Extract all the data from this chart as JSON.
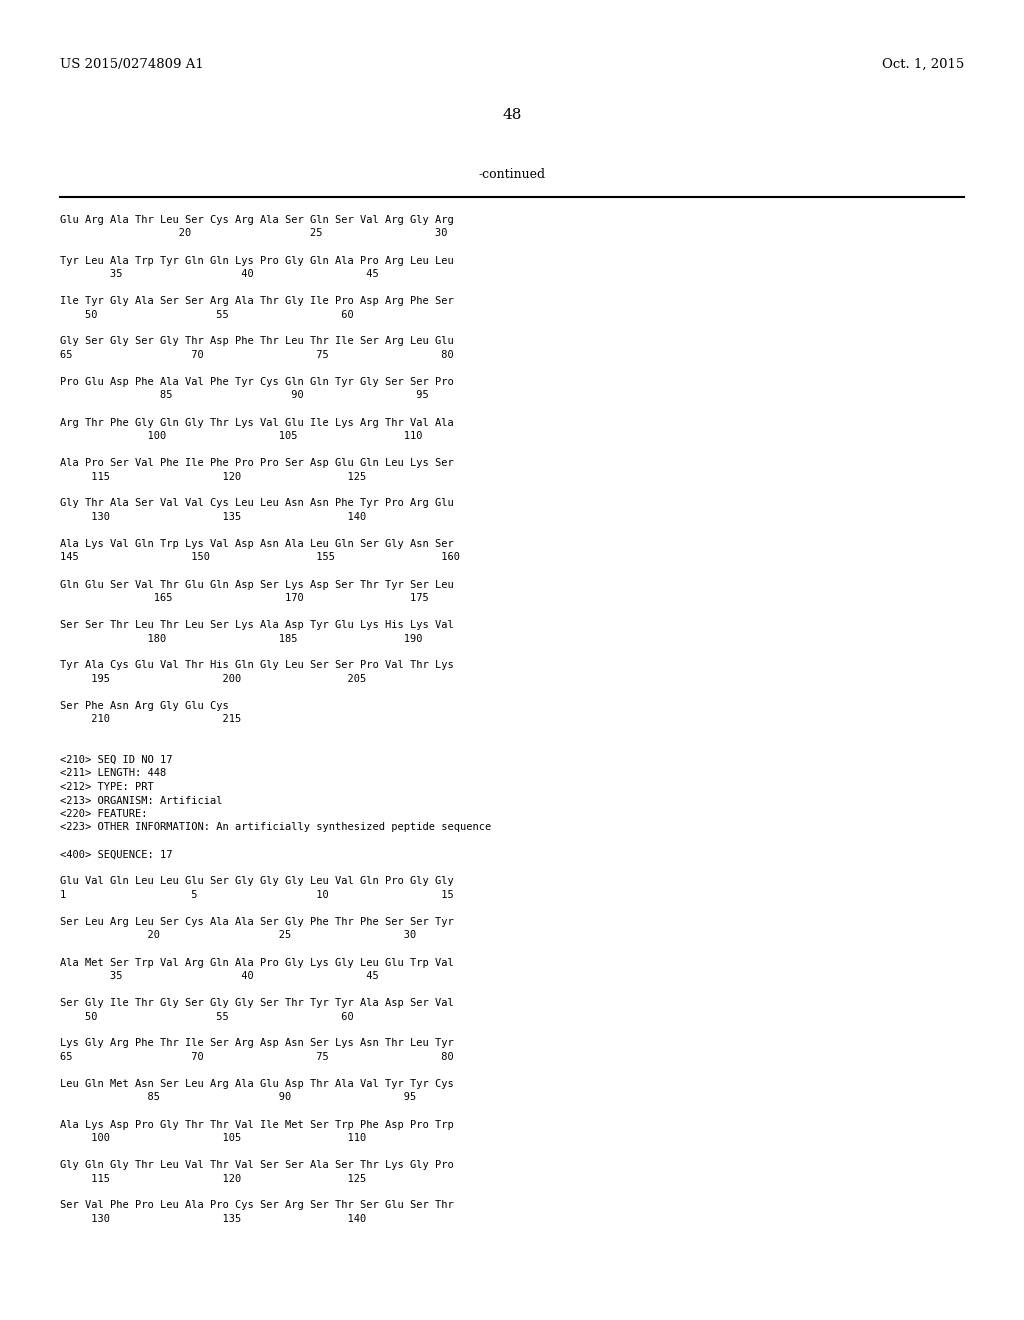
{
  "header_left": "US 2015/0274809 A1",
  "header_right": "Oct. 1, 2015",
  "page_number": "48",
  "continued_label": "-continued",
  "background_color": "#ffffff",
  "text_color": "#000000",
  "content": [
    {
      "text": "Glu Arg Ala Thr Leu Ser Cys Arg Ala Ser Gln Ser Val Arg Gly Arg",
      "type": "seq"
    },
    {
      "text": "                   20                   25                  30",
      "type": "num"
    },
    {
      "text": "",
      "type": "blank"
    },
    {
      "text": "Tyr Leu Ala Trp Tyr Gln Gln Lys Pro Gly Gln Ala Pro Arg Leu Leu",
      "type": "seq"
    },
    {
      "text": "        35                   40                  45",
      "type": "num"
    },
    {
      "text": "",
      "type": "blank"
    },
    {
      "text": "Ile Tyr Gly Ala Ser Ser Arg Ala Thr Gly Ile Pro Asp Arg Phe Ser",
      "type": "seq"
    },
    {
      "text": "    50                   55                  60",
      "type": "num"
    },
    {
      "text": "",
      "type": "blank"
    },
    {
      "text": "Gly Ser Gly Ser Gly Thr Asp Phe Thr Leu Thr Ile Ser Arg Leu Glu",
      "type": "seq"
    },
    {
      "text": "65                   70                  75                  80",
      "type": "num"
    },
    {
      "text": "",
      "type": "blank"
    },
    {
      "text": "Pro Glu Asp Phe Ala Val Phe Tyr Cys Gln Gln Tyr Gly Ser Ser Pro",
      "type": "seq"
    },
    {
      "text": "                85                   90                  95",
      "type": "num"
    },
    {
      "text": "",
      "type": "blank"
    },
    {
      "text": "Arg Thr Phe Gly Gln Gly Thr Lys Val Glu Ile Lys Arg Thr Val Ala",
      "type": "seq"
    },
    {
      "text": "              100                  105                 110",
      "type": "num"
    },
    {
      "text": "",
      "type": "blank"
    },
    {
      "text": "Ala Pro Ser Val Phe Ile Phe Pro Pro Ser Asp Glu Gln Leu Lys Ser",
      "type": "seq"
    },
    {
      "text": "     115                  120                 125",
      "type": "num"
    },
    {
      "text": "",
      "type": "blank"
    },
    {
      "text": "Gly Thr Ala Ser Val Val Cys Leu Leu Asn Asn Phe Tyr Pro Arg Glu",
      "type": "seq"
    },
    {
      "text": "     130                  135                 140",
      "type": "num"
    },
    {
      "text": "",
      "type": "blank"
    },
    {
      "text": "Ala Lys Val Gln Trp Lys Val Asp Asn Ala Leu Gln Ser Gly Asn Ser",
      "type": "seq"
    },
    {
      "text": "145                  150                 155                 160",
      "type": "num"
    },
    {
      "text": "",
      "type": "blank"
    },
    {
      "text": "Gln Glu Ser Val Thr Glu Gln Asp Ser Lys Asp Ser Thr Tyr Ser Leu",
      "type": "seq"
    },
    {
      "text": "               165                  170                 175",
      "type": "num"
    },
    {
      "text": "",
      "type": "blank"
    },
    {
      "text": "Ser Ser Thr Leu Thr Leu Ser Lys Ala Asp Tyr Glu Lys His Lys Val",
      "type": "seq"
    },
    {
      "text": "              180                  185                 190",
      "type": "num"
    },
    {
      "text": "",
      "type": "blank"
    },
    {
      "text": "Tyr Ala Cys Glu Val Thr His Gln Gly Leu Ser Ser Pro Val Thr Lys",
      "type": "seq"
    },
    {
      "text": "     195                  200                 205",
      "type": "num"
    },
    {
      "text": "",
      "type": "blank"
    },
    {
      "text": "Ser Phe Asn Arg Gly Glu Cys",
      "type": "seq"
    },
    {
      "text": "     210                  215",
      "type": "num"
    },
    {
      "text": "",
      "type": "blank"
    },
    {
      "text": "",
      "type": "blank"
    },
    {
      "text": "<210> SEQ ID NO 17",
      "type": "meta"
    },
    {
      "text": "<211> LENGTH: 448",
      "type": "meta"
    },
    {
      "text": "<212> TYPE: PRT",
      "type": "meta"
    },
    {
      "text": "<213> ORGANISM: Artificial",
      "type": "meta"
    },
    {
      "text": "<220> FEATURE:",
      "type": "meta"
    },
    {
      "text": "<223> OTHER INFORMATION: An artificially synthesized peptide sequence",
      "type": "meta"
    },
    {
      "text": "",
      "type": "blank"
    },
    {
      "text": "<400> SEQUENCE: 17",
      "type": "meta"
    },
    {
      "text": "",
      "type": "blank"
    },
    {
      "text": "Glu Val Gln Leu Leu Glu Ser Gly Gly Gly Leu Val Gln Pro Gly Gly",
      "type": "seq"
    },
    {
      "text": "1                    5                   10                  15",
      "type": "num"
    },
    {
      "text": "",
      "type": "blank"
    },
    {
      "text": "Ser Leu Arg Leu Ser Cys Ala Ala Ser Gly Phe Thr Phe Ser Ser Tyr",
      "type": "seq"
    },
    {
      "text": "              20                   25                  30",
      "type": "num"
    },
    {
      "text": "",
      "type": "blank"
    },
    {
      "text": "Ala Met Ser Trp Val Arg Gln Ala Pro Gly Lys Gly Leu Glu Trp Val",
      "type": "seq"
    },
    {
      "text": "        35                   40                  45",
      "type": "num"
    },
    {
      "text": "",
      "type": "blank"
    },
    {
      "text": "Ser Gly Ile Thr Gly Ser Gly Gly Ser Thr Tyr Tyr Ala Asp Ser Val",
      "type": "seq"
    },
    {
      "text": "    50                   55                  60",
      "type": "num"
    },
    {
      "text": "",
      "type": "blank"
    },
    {
      "text": "Lys Gly Arg Phe Thr Ile Ser Arg Asp Asn Ser Lys Asn Thr Leu Tyr",
      "type": "seq"
    },
    {
      "text": "65                   70                  75                  80",
      "type": "num"
    },
    {
      "text": "",
      "type": "blank"
    },
    {
      "text": "Leu Gln Met Asn Ser Leu Arg Ala Glu Asp Thr Ala Val Tyr Tyr Cys",
      "type": "seq"
    },
    {
      "text": "              85                   90                  95",
      "type": "num"
    },
    {
      "text": "",
      "type": "blank"
    },
    {
      "text": "Ala Lys Asp Pro Gly Thr Thr Val Ile Met Ser Trp Phe Asp Pro Trp",
      "type": "seq"
    },
    {
      "text": "     100                  105                 110",
      "type": "num"
    },
    {
      "text": "",
      "type": "blank"
    },
    {
      "text": "Gly Gln Gly Thr Leu Val Thr Val Ser Ser Ala Ser Thr Lys Gly Pro",
      "type": "seq"
    },
    {
      "text": "     115                  120                 125",
      "type": "num"
    },
    {
      "text": "",
      "type": "blank"
    },
    {
      "text": "Ser Val Phe Pro Leu Ala Pro Cys Ser Arg Ser Thr Ser Glu Ser Thr",
      "type": "seq"
    },
    {
      "text": "     130                  135                 140",
      "type": "num"
    }
  ]
}
